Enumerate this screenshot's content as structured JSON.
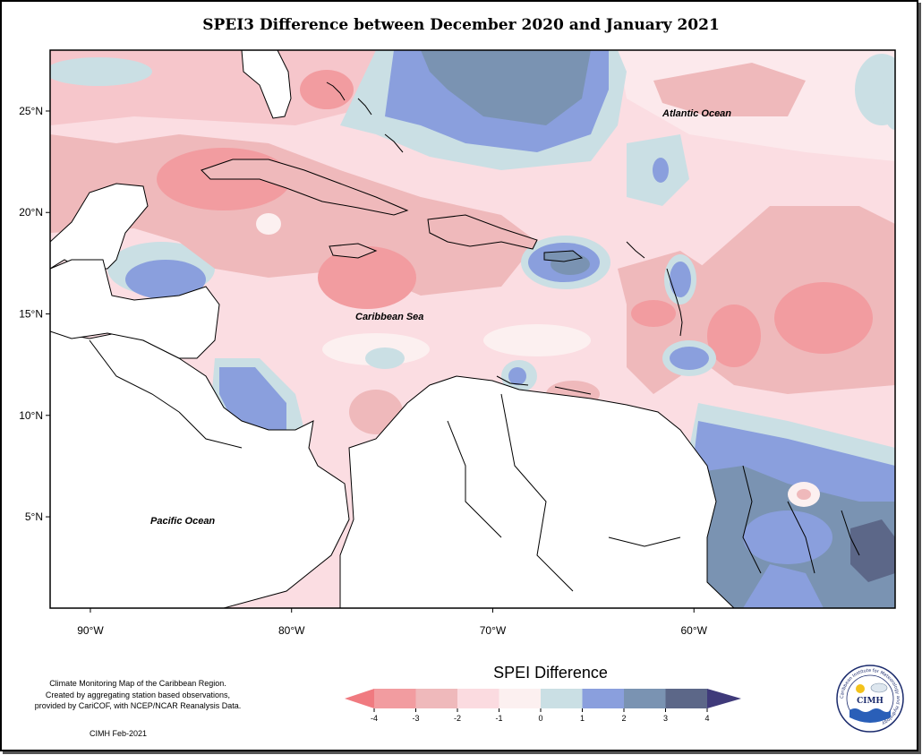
{
  "title": "SPEI3 Difference between December 2020 and January 2021",
  "map": {
    "x_ticks": [
      {
        "label": "90°W",
        "lon": -90
      },
      {
        "label": "80°W",
        "lon": -80
      },
      {
        "label": "70°W",
        "lon": -70
      },
      {
        "label": "60°W",
        "lon": -60
      }
    ],
    "y_ticks": [
      {
        "label": "25°N",
        "lat": 25
      },
      {
        "label": "20°N",
        "lat": 20
      },
      {
        "label": "15°N",
        "lat": 15
      },
      {
        "label": "10°N",
        "lat": 10
      },
      {
        "label": "5°N",
        "lat": 5
      }
    ],
    "lon_range": [
      -92,
      -50
    ],
    "lat_range": [
      0.5,
      28
    ],
    "labels": {
      "atlantic": "Atlantic Ocean",
      "caribbean": "Caribbean Sea",
      "pacific": "Pacific Ocean"
    }
  },
  "legend": {
    "title": "SPEI Difference",
    "ticks": [
      "-4",
      "-3",
      "-2",
      "-1",
      "0",
      "1",
      "2",
      "3",
      "4"
    ],
    "colors": [
      "#f07a80",
      "#f29ca0",
      "#efb9bb",
      "#fbdbe0",
      "#fcf0f0",
      "#cadfe4",
      "#8a9fdd",
      "#7a93b2",
      "#5c6788",
      "#3f3a7a"
    ]
  },
  "note": {
    "line1": "Climate Monitoring Map of the Caribbean Region.",
    "line2": "Created by aggregating station based observations,",
    "line3": "provided by CariCOF, with NCEP/NCAR Reanalysis Data."
  },
  "credit": "CIMH Feb-2021",
  "logo": {
    "name": "CIMH",
    "ring_text": "Caribbean Institute for Meteorology and Hydrology"
  }
}
